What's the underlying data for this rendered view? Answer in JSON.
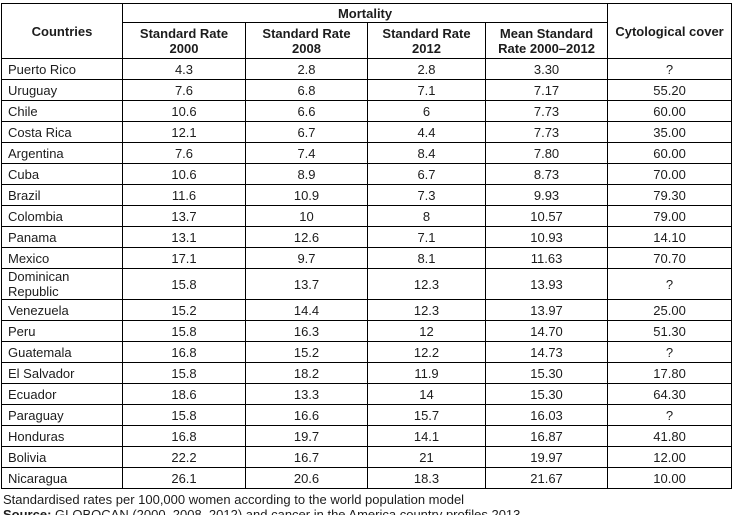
{
  "table": {
    "header": {
      "countries": "Countries",
      "mortality": "Mortality",
      "cytological_cover": "Cytological cover",
      "sub": [
        {
          "line1": "Standard Rate",
          "line2": "2000"
        },
        {
          "line1": "Standard Rate",
          "line2": "2008"
        },
        {
          "line1": "Standard Rate",
          "line2": "2012"
        },
        {
          "line1": "Mean Standard",
          "line2": "Rate 2000–2012"
        }
      ]
    },
    "columns": [
      "country",
      "standard_rate_2000",
      "standard_rate_2008",
      "standard_rate_2012",
      "mean_standard_rate_2000_2012",
      "cytological_cover"
    ],
    "rows": [
      [
        "Puerto Rico",
        "4.3",
        "2.8",
        "2.8",
        "3.30",
        "?"
      ],
      [
        "Uruguay",
        "7.6",
        "6.8",
        "7.1",
        "7.17",
        "55.20"
      ],
      [
        "Chile",
        "10.6",
        "6.6",
        "6",
        "7.73",
        "60.00"
      ],
      [
        "Costa Rica",
        "12.1",
        "6.7",
        "4.4",
        "7.73",
        "35.00"
      ],
      [
        "Argentina",
        "7.6",
        "7.4",
        "8.4",
        "7.80",
        "60.00"
      ],
      [
        "Cuba",
        "10.6",
        "8.9",
        "6.7",
        "8.73",
        "70.00"
      ],
      [
        "Brazil",
        "11.6",
        "10.9",
        "7.3",
        "9.93",
        "79.30"
      ],
      [
        "Colombia",
        "13.7",
        "10",
        "8",
        "10.57",
        "79.00"
      ],
      [
        "Panama",
        "13.1",
        "12.6",
        "7.1",
        "10.93",
        "14.10"
      ],
      [
        "Mexico",
        "17.1",
        "9.7",
        "8.1",
        "11.63",
        "70.70"
      ],
      [
        "Dominican Republic",
        "15.8",
        "13.7",
        "12.3",
        "13.93",
        "?"
      ],
      [
        "Venezuela",
        "15.2",
        "14.4",
        "12.3",
        "13.97",
        "25.00"
      ],
      [
        "Peru",
        "15.8",
        "16.3",
        "12",
        "14.70",
        "51.30"
      ],
      [
        "Guatemala",
        "16.8",
        "15.2",
        "12.2",
        "14.73",
        "?"
      ],
      [
        "El Salvador",
        "15.8",
        "18.2",
        "11.9",
        "15.30",
        "17.80"
      ],
      [
        "Ecuador",
        "18.6",
        "13.3",
        "14",
        "15.30",
        "64.30"
      ],
      [
        "Paraguay",
        "15.8",
        "16.6",
        "15.7",
        "16.03",
        "?"
      ],
      [
        "Honduras",
        "16.8",
        "19.7",
        "14.1",
        "16.87",
        "41.80"
      ],
      [
        "Bolivia",
        "22.2",
        "16.7",
        "21",
        "19.97",
        "12.00"
      ],
      [
        "Nicaragua",
        "26.1",
        "20.6",
        "18.3",
        "21.67",
        "10.00"
      ]
    ]
  },
  "footnotes": {
    "note": "Standardised rates per 100,000 women according to the world population model",
    "source_label": "Source:",
    "source_text": " GLOBOCAN (2000, 2008, 2012) and cancer in the America country profiles 2013."
  },
  "colors": {
    "border": "#000000",
    "text": "#1c1c1c",
    "background": "#ffffff"
  }
}
